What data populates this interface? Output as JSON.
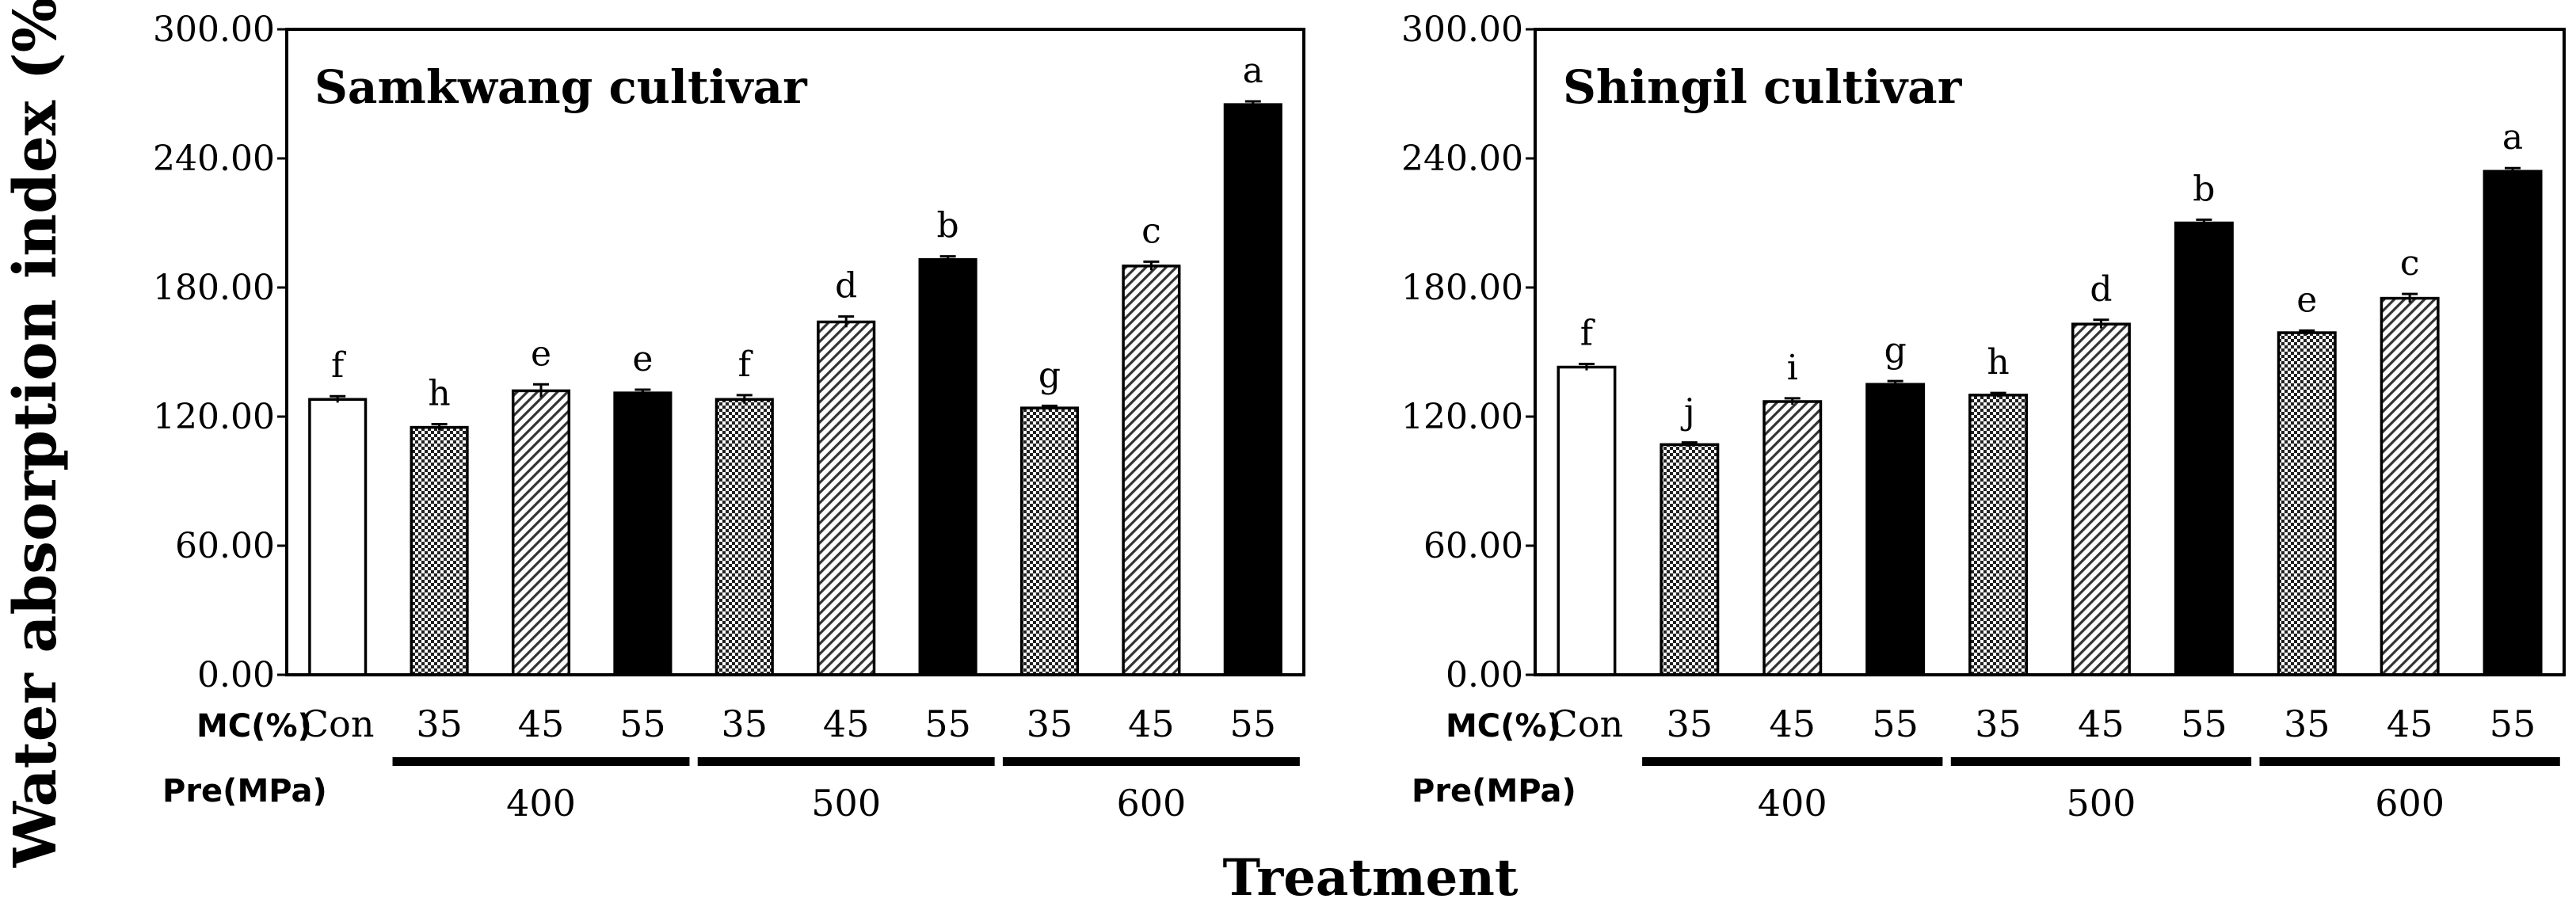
{
  "figure": {
    "ylabel": "Water absorption index (%)",
    "xlabel": "Treatment",
    "mc_label": "MC(%)",
    "pre_label": "Pre(MPa)"
  },
  "chart_data": [
    {
      "type": "bar",
      "title": "Samkwang cultivar",
      "ylim": [
        0,
        300
      ],
      "yticks": [
        "0.00",
        "60.00",
        "120.00",
        "180.00",
        "240.00",
        "300.00"
      ],
      "categories": [
        "Con",
        "35",
        "45",
        "55",
        "35",
        "45",
        "55",
        "35",
        "45",
        "55"
      ],
      "groups": [
        {
          "label": "400",
          "from": 1,
          "to": 3
        },
        {
          "label": "500",
          "from": 4,
          "to": 6
        },
        {
          "label": "600",
          "from": 7,
          "to": 9
        }
      ],
      "values": [
        128,
        115,
        132,
        131,
        128,
        164,
        193,
        124,
        190,
        265
      ],
      "errors": [
        1.5,
        1.5,
        3,
        1.5,
        2,
        2.5,
        1.5,
        1,
        2,
        1.5
      ],
      "letters": [
        "f",
        "h",
        "e",
        "e",
        "f",
        "d",
        "b",
        "g",
        "c",
        "a"
      ],
      "fills": [
        "white",
        "dense",
        "hatch",
        "black",
        "dense",
        "hatch",
        "black",
        "dense",
        "hatch",
        "black"
      ]
    },
    {
      "type": "bar",
      "title": "Shingil cultivar",
      "ylim": [
        0,
        300
      ],
      "yticks": [
        "0.00",
        "60.00",
        "120.00",
        "180.00",
        "240.00",
        "300.00"
      ],
      "categories": [
        "Con",
        "35",
        "45",
        "55",
        "35",
        "45",
        "55",
        "35",
        "45",
        "55"
      ],
      "groups": [
        {
          "label": "400",
          "from": 1,
          "to": 3
        },
        {
          "label": "500",
          "from": 4,
          "to": 6
        },
        {
          "label": "600",
          "from": 7,
          "to": 9
        }
      ],
      "values": [
        143,
        107,
        127,
        135,
        130,
        163,
        210,
        159,
        175,
        234
      ],
      "errors": [
        1.5,
        1,
        1.5,
        1.5,
        1,
        2,
        1.5,
        1,
        2,
        1.5
      ],
      "letters": [
        "f",
        "j",
        "i",
        "g",
        "h",
        "d",
        "b",
        "e",
        "c",
        "a"
      ],
      "fills": [
        "white",
        "dense",
        "hatch",
        "black",
        "dense",
        "hatch",
        "black",
        "dense",
        "hatch",
        "black"
      ]
    }
  ]
}
